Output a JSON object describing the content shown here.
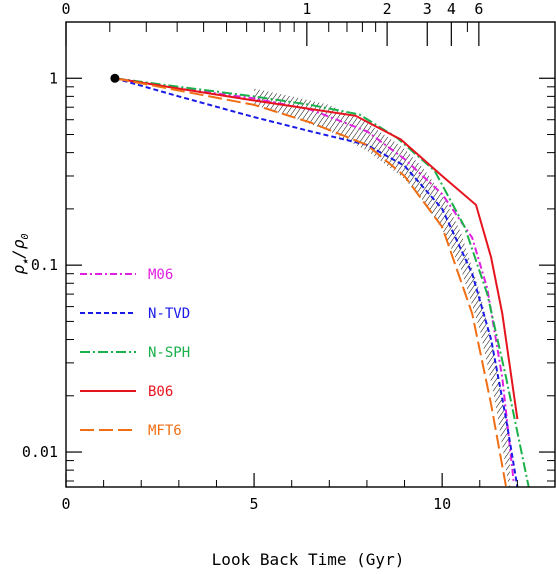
{
  "chart_data": {
    "type": "line",
    "xlabel": "Look Back Time (Gyr)",
    "ylabel_html": [
      "ρ",
      "★",
      "/ρ",
      "0"
    ],
    "x_scale": "linear",
    "y_scale": "log",
    "xlim": [
      0,
      13
    ],
    "ylim": [
      0.0065,
      2.0
    ],
    "x_ticks": [
      0,
      5,
      10
    ],
    "x_tick_labels": [
      "0",
      "5",
      "10"
    ],
    "y_ticks": [
      1,
      0.1,
      0.01
    ],
    "y_tick_labels": [
      "1",
      "0.1",
      "0.01"
    ],
    "top_axis": {
      "label_values": [
        0,
        1,
        2,
        3,
        4,
        6
      ],
      "tick_labels": [
        "0",
        "1",
        "2",
        "3",
        "4",
        "6"
      ],
      "minor_values": [
        0.1,
        0.2,
        0.3,
        0.4,
        0.5,
        0.6,
        0.7,
        0.8,
        0.9,
        1.2,
        1.4,
        1.6,
        1.8,
        5
      ]
    },
    "reference_point": {
      "x": 1.3,
      "y": 1.0
    },
    "hatched_band": {
      "x": [
        5.0,
        6.0,
        7.0,
        8.0,
        9.0,
        9.5,
        10.0,
        10.5,
        11.0,
        11.4,
        11.8
      ],
      "upper": [
        0.88,
        0.8,
        0.72,
        0.58,
        0.42,
        0.33,
        0.24,
        0.15,
        0.072,
        0.033,
        0.011
      ],
      "lower": [
        0.72,
        0.62,
        0.52,
        0.41,
        0.29,
        0.22,
        0.155,
        0.095,
        0.045,
        0.019,
        0.006
      ]
    },
    "series": [
      {
        "name": "M06",
        "color": "#e020e0",
        "dash": "7,3,2,3",
        "x": [
          1.3,
          3.0,
          5.0,
          6.5,
          8.0,
          9.0,
          10.0,
          10.8,
          11.2,
          11.6,
          11.9
        ],
        "y": [
          1.0,
          0.88,
          0.78,
          0.68,
          0.52,
          0.37,
          0.24,
          0.14,
          0.075,
          0.025,
          0.007
        ]
      },
      {
        "name": "N-TVD",
        "color": "#1a1ae6",
        "dash": "5,3",
        "x": [
          1.3,
          3.0,
          5.0,
          6.5,
          8.0,
          9.0,
          10.0,
          10.8,
          11.3,
          11.7,
          12.0
        ],
        "y": [
          1.0,
          0.8,
          0.62,
          0.52,
          0.44,
          0.34,
          0.2,
          0.09,
          0.04,
          0.015,
          0.0065
        ]
      },
      {
        "name": "N-SPH",
        "color": "#1ab04a",
        "dash": "10,3,2,3",
        "x": [
          1.3,
          3.0,
          5.0,
          6.5,
          7.8,
          8.8,
          9.8,
          10.6,
          11.2,
          11.7,
          12.3
        ],
        "y": [
          1.0,
          0.9,
          0.8,
          0.72,
          0.64,
          0.48,
          0.32,
          0.16,
          0.07,
          0.025,
          0.0065
        ]
      },
      {
        "name": "B06",
        "color": "#e6141e",
        "dash": "",
        "x": [
          1.3,
          3.0,
          5.0,
          7.7,
          8.9,
          10.0,
          10.9,
          11.3,
          11.6,
          12.0
        ],
        "y": [
          1.0,
          0.88,
          0.76,
          0.63,
          0.47,
          0.3,
          0.21,
          0.11,
          0.055,
          0.015
        ]
      },
      {
        "name": "MFT6",
        "color": "#f06e14",
        "dash": "14,5",
        "x": [
          1.3,
          3.0,
          5.0,
          6.5,
          8.0,
          9.0,
          10.0,
          10.8,
          11.3,
          11.7
        ],
        "y": [
          1.0,
          0.86,
          0.72,
          0.58,
          0.44,
          0.3,
          0.16,
          0.055,
          0.018,
          0.0065
        ]
      }
    ]
  }
}
